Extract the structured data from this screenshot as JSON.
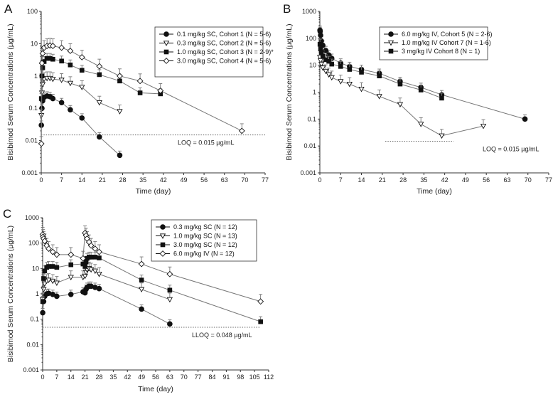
{
  "chart_data": [
    {
      "panel": "A",
      "type": "line",
      "xlabel": "Time (day)",
      "ylabel": "Bisibimod Serum Concentrations (µg/mL)",
      "xlim": [
        0,
        77
      ],
      "ylim": [
        0.001,
        100
      ],
      "yscale": "log",
      "xticks": [
        0,
        7,
        14,
        21,
        28,
        35,
        42,
        49,
        56,
        63,
        70,
        77
      ],
      "yticks": [
        0.001,
        0.01,
        0.1,
        1,
        10,
        100
      ],
      "ytick_labels": [
        "0.001",
        "0.01",
        "0.1",
        "1",
        "10",
        "100"
      ],
      "loq": {
        "value": 0.015,
        "label": "LOQ = 0.015 µg/mL"
      },
      "legend_position": "top-right",
      "series": [
        {
          "name": "0.1 mg/kg SC, Cohort 1 (N = 5-6)",
          "marker": "filled-circle",
          "x": [
            0.04,
            0.25,
            0.5,
            1,
            2,
            3,
            4,
            7,
            10,
            14,
            20,
            27
          ],
          "y": [
            0.03,
            0.1,
            0.17,
            0.22,
            0.24,
            0.23,
            0.2,
            0.15,
            0.09,
            0.05,
            0.013,
            0.0035
          ]
        },
        {
          "name": "0.3 mg/kg SC, Cohort 2 (N = 5-6)",
          "marker": "open-triangle-down",
          "x": [
            0.04,
            0.25,
            0.5,
            1,
            2,
            3,
            4,
            7,
            10,
            14,
            20,
            27
          ],
          "y": [
            0.06,
            0.3,
            0.55,
            0.8,
            0.85,
            0.85,
            0.8,
            0.75,
            0.6,
            0.45,
            0.15,
            0.08
          ]
        },
        {
          "name": "1.0 mg/kg SC, Cohort 3 (N = 2-9)*",
          "marker": "filled-square",
          "x": [
            0.04,
            0.25,
            0.5,
            1,
            2,
            3,
            4,
            7,
            10,
            14,
            20,
            27,
            34,
            41
          ],
          "y": [
            0.2,
            1.0,
            1.8,
            2.8,
            3.5,
            3.5,
            3.3,
            2.9,
            2.2,
            1.5,
            1.1,
            0.7,
            0.3,
            0.28
          ]
        },
        {
          "name": "3.0 mg/kg SC, Cohort 4 (N = 5-6)",
          "marker": "open-diamond",
          "x": [
            0.04,
            0.25,
            0.5,
            1,
            2,
            3,
            4,
            7,
            10,
            14,
            20,
            27,
            34,
            41,
            69
          ],
          "y": [
            0.008,
            2.5,
            5.0,
            7.5,
            8.5,
            8.8,
            8.5,
            7.5,
            6.0,
            3.8,
            2.0,
            1.0,
            0.7,
            0.35,
            0.02
          ]
        }
      ]
    },
    {
      "panel": "B",
      "type": "line",
      "xlabel": "Time (day)",
      "ylabel": "Bisibimod Serum Concentrations (µg/mL)",
      "xlim": [
        0,
        77
      ],
      "ylim": [
        0.001,
        1000
      ],
      "yscale": "log",
      "xticks": [
        0,
        7,
        14,
        21,
        28,
        35,
        42,
        49,
        56,
        63,
        70,
        77
      ],
      "yticks": [
        0.001,
        0.01,
        0.1,
        1,
        10,
        100,
        1000
      ],
      "ytick_labels": [
        "0.001",
        "0.01",
        "0.1",
        "1",
        "10",
        "100",
        "1000"
      ],
      "loq": {
        "value": 0.015,
        "label": "LOQ = 0.015 µg/mL"
      },
      "legend_position": "top-right",
      "series": [
        {
          "name": "6.0 mg/kg IV, Cohort 5 (N = 2-6)",
          "marker": "filled-circle",
          "x": [
            0.04,
            0.1,
            0.25,
            0.5,
            1,
            2,
            3,
            4,
            7,
            10,
            14,
            20,
            27,
            34,
            41,
            69
          ],
          "y": [
            200,
            180,
            130,
            80,
            55,
            35,
            24,
            18,
            12,
            9,
            7,
            5,
            2.5,
            1.5,
            0.8,
            0.1
          ]
        },
        {
          "name": "1.0 mg/kg IV Cohort 7 (N = 1-6)",
          "marker": "open-triangle-down",
          "x": [
            0.04,
            0.25,
            0.5,
            1,
            2,
            3,
            4,
            7,
            10,
            14,
            20,
            27,
            34,
            41,
            55
          ],
          "y": [
            20,
            15,
            11,
            8,
            6,
            4.5,
            3.5,
            2.5,
            2,
            1.3,
            0.7,
            0.35,
            0.065,
            0.024,
            0.055
          ]
        },
        {
          "name": "3 mg/kg IV Cohort 8 (N = 1)",
          "marker": "filled-square",
          "x": [
            0.04,
            0.25,
            0.5,
            1,
            2,
            3,
            4,
            7,
            10,
            14,
            20,
            27,
            34,
            41
          ],
          "y": [
            60,
            40,
            30,
            22,
            16,
            14,
            11,
            9,
            7,
            5.5,
            4,
            2,
            1.2,
            0.6
          ]
        }
      ]
    },
    {
      "panel": "C",
      "type": "line",
      "xlabel": "Time (day)",
      "ylabel": "Bisibimod Serum Concentrations (µg/mL)",
      "xlim": [
        0,
        112
      ],
      "ylim": [
        0.001,
        1000
      ],
      "yscale": "log",
      "xticks": [
        0,
        7,
        14,
        21,
        28,
        35,
        42,
        49,
        56,
        63,
        70,
        77,
        84,
        91,
        98,
        105,
        112
      ],
      "yticks": [
        0.001,
        0.01,
        0.1,
        1,
        10,
        100,
        1000
      ],
      "ytick_labels": [
        "0.001",
        "0.01",
        "0.1",
        "1",
        "10",
        "100",
        "1000"
      ],
      "loq": {
        "value": 0.048,
        "label": "LLOQ = 0.048 µg/mL"
      },
      "legend_position": "top-right",
      "series": [
        {
          "name": "0.3 mg/kg SC (N = 12)",
          "marker": "filled-circle",
          "x": [
            0.04,
            0.5,
            1,
            2,
            3,
            5,
            7,
            14,
            20,
            21,
            21.5,
            22,
            23,
            24,
            26,
            28,
            49,
            63
          ],
          "y": [
            0.18,
            0.5,
            0.8,
            1.0,
            1.05,
            0.95,
            0.8,
            0.95,
            1.2,
            1.1,
            1.5,
            1.8,
            2.0,
            2.0,
            1.8,
            1.6,
            0.25,
            0.065
          ]
        },
        {
          "name": "1.0 mg/kg SC (N = 13)",
          "marker": "open-triangle-down",
          "x": [
            0.04,
            0.5,
            1,
            2,
            3,
            5,
            7,
            14,
            20,
            21,
            21.5,
            22,
            23,
            24,
            26,
            28,
            49,
            63
          ],
          "y": [
            0.6,
            1.5,
            2.5,
            3.2,
            3.5,
            3.2,
            2.7,
            4.5,
            4.5,
            5,
            7,
            9,
            10,
            9,
            8,
            6,
            1.5,
            0.6
          ]
        },
        {
          "name": "3.0 mg/kg SC (N = 12)",
          "marker": "filled-square",
          "x": [
            0.04,
            0.5,
            1,
            2,
            3,
            5,
            7,
            14,
            20,
            21,
            21.5,
            22,
            23,
            24,
            26,
            28,
            49,
            63,
            108
          ],
          "y": [
            0.5,
            4,
            8,
            11,
            12,
            12,
            11,
            14,
            15,
            12,
            18,
            25,
            28,
            28,
            28,
            26,
            3.5,
            1.4,
            0.08
          ]
        },
        {
          "name": "6.0 mg/kg IV (N = 12)",
          "marker": "open-diamond",
          "x": [
            0.04,
            0.25,
            0.5,
            1,
            2,
            3,
            5,
            7,
            14,
            20,
            21,
            21.5,
            22,
            23,
            24,
            26,
            28,
            49,
            63,
            108
          ],
          "y": [
            220,
            180,
            150,
            120,
            80,
            60,
            45,
            35,
            35,
            25,
            250,
            200,
            150,
            110,
            80,
            60,
            45,
            15,
            6,
            0.5
          ]
        }
      ]
    }
  ]
}
